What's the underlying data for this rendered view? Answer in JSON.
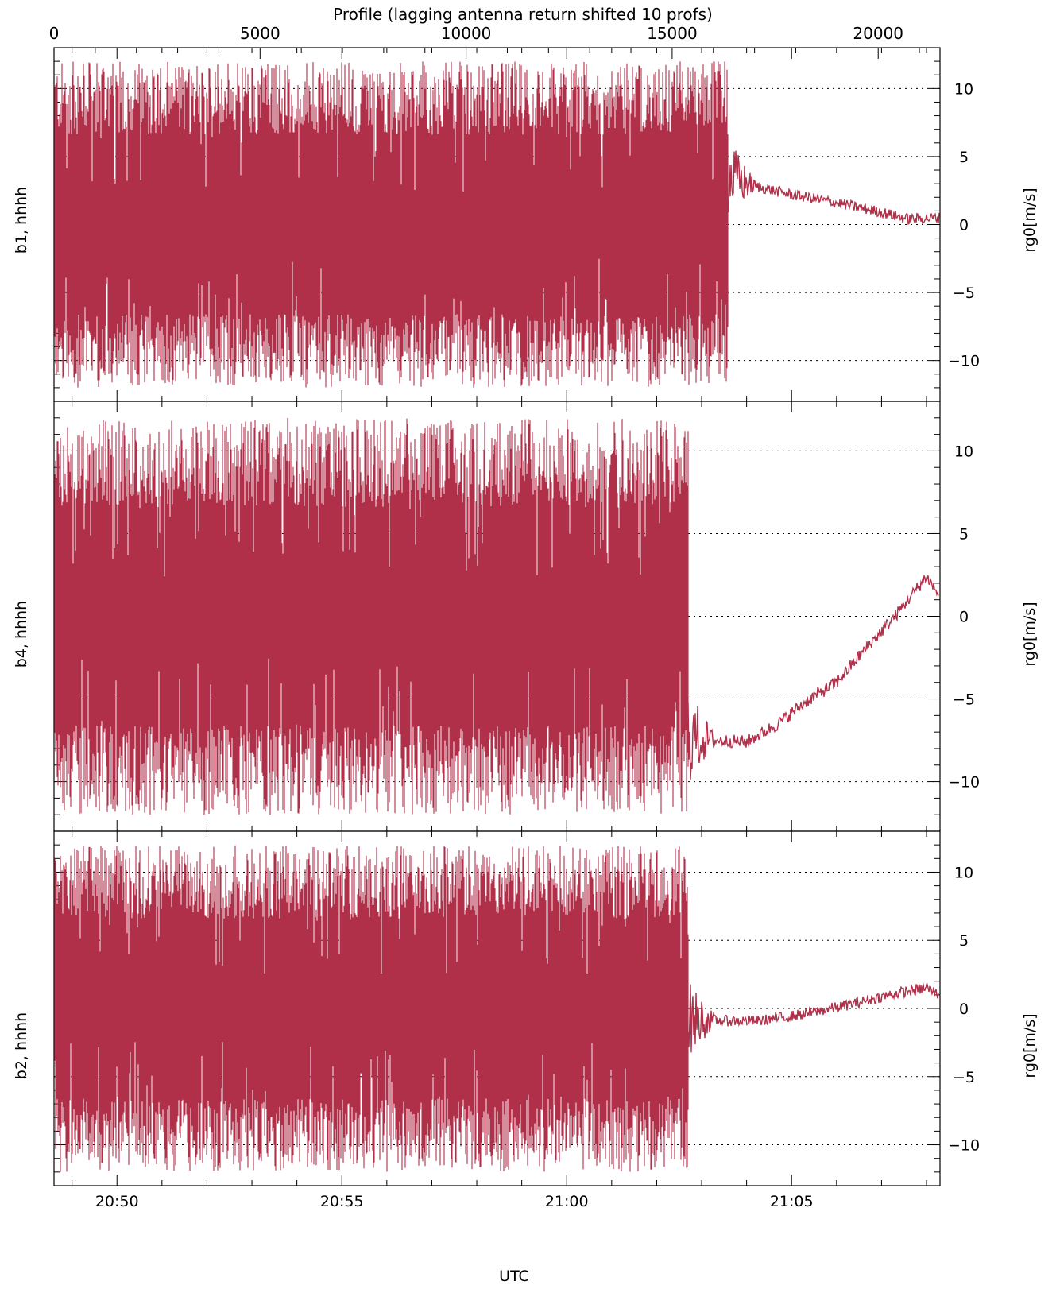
{
  "chart_data": {
    "type": "line",
    "top_axis_label": "Profile (lagging antenna return shifted 10 profs)",
    "top_axis_ticks": [
      "0",
      "5000",
      "10000",
      "15000",
      "20000"
    ],
    "top_axis_tick_values": [
      0,
      5000,
      10000,
      15000,
      20000
    ],
    "top_axis_range": [
      0,
      21500
    ],
    "xlabel": "UTC",
    "x_tick_labels": [
      "20:50",
      "20:55",
      "21:00",
      "21:05"
    ],
    "x_tick_minutes": [
      50,
      55,
      60,
      65
    ],
    "x_range_minutes": [
      48.6,
      68.3
    ],
    "ylabel_right": "rg0[m/s]",
    "y_range": [
      -13,
      13
    ],
    "y_ticks": [
      "10",
      "5",
      "0",
      "−5",
      "−10"
    ],
    "y_tick_values": [
      10,
      5,
      0,
      -5,
      -10
    ],
    "grid": "dotted horizontal at labelled y ticks (right part of each panel)",
    "line_color": "#b0304a",
    "panels": [
      {
        "name": "b1, hhhh",
        "noisy_until": 63.6,
        "noise_amplitude": 12,
        "trend": [
          [
            63.6,
            3.5
          ],
          [
            64.2,
            2.8
          ],
          [
            65.0,
            2.2
          ],
          [
            66.0,
            1.6
          ],
          [
            67.0,
            0.9
          ],
          [
            67.6,
            0.4
          ],
          [
            68.3,
            0.5
          ]
        ]
      },
      {
        "name": "b4, hhhh",
        "noisy_until": 62.7,
        "noise_amplitude": 12,
        "trend": [
          [
            62.7,
            -7.3
          ],
          [
            63.3,
            -7.5
          ],
          [
            64.0,
            -7.6
          ],
          [
            64.7,
            -6.5
          ],
          [
            65.3,
            -5.2
          ],
          [
            66.0,
            -4.0
          ],
          [
            66.7,
            -1.8
          ],
          [
            67.3,
            0.0
          ],
          [
            68.0,
            2.4
          ],
          [
            68.3,
            1.2
          ]
        ]
      },
      {
        "name": "b2, hhhh",
        "noisy_until": 62.7,
        "noise_amplitude": 12,
        "trend": [
          [
            62.7,
            -0.8
          ],
          [
            63.5,
            -0.9
          ],
          [
            64.3,
            -0.9
          ],
          [
            65.3,
            -0.4
          ],
          [
            66.3,
            0.3
          ],
          [
            67.3,
            1.1
          ],
          [
            68.0,
            1.5
          ],
          [
            68.3,
            1.0
          ]
        ]
      }
    ]
  }
}
